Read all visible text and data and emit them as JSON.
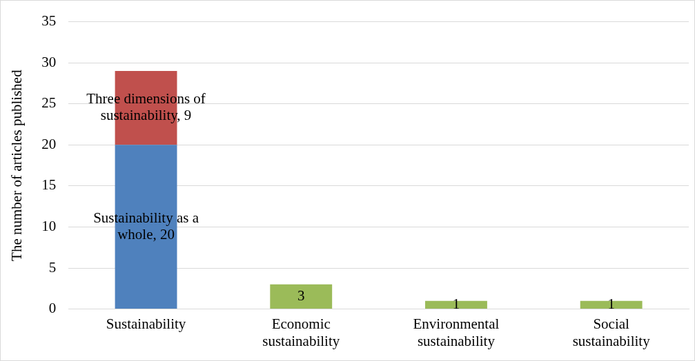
{
  "chart_data": {
    "type": "bar",
    "stacked": true,
    "ylabel": "The number of articles published",
    "categories": [
      "Sustainability",
      "Economic sustainability",
      "Environmental sustainability",
      "Social sustainability"
    ],
    "series": [
      {
        "color": "#4f81bd",
        "values": [
          20,
          null,
          null,
          null
        ],
        "value_labels": [
          "Sustainability as a whole, 20",
          null,
          null,
          null
        ]
      },
      {
        "color": "#c0504d",
        "values": [
          9,
          null,
          null,
          null
        ],
        "value_labels": [
          "Three dimensions of sustainability, 9",
          null,
          null,
          null
        ]
      },
      {
        "color": "#9bbb59",
        "values": [
          null,
          3,
          1,
          1
        ],
        "value_labels": [
          null,
          "3",
          "1",
          "1"
        ]
      }
    ],
    "ylim": [
      0,
      35
    ],
    "yticks": [
      0,
      5,
      10,
      15,
      20,
      25,
      30,
      35
    ],
    "grid": "y",
    "legend": false
  }
}
